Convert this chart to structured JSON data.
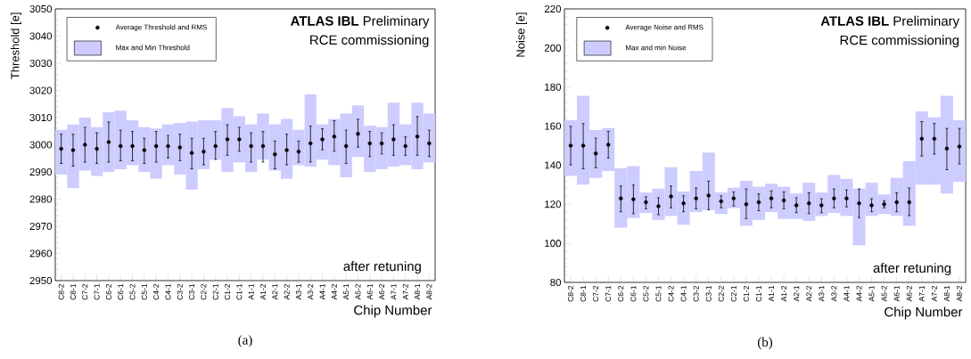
{
  "chart_data": [
    {
      "type": "bar",
      "ylabel": "Threshold [e]",
      "xlabel": "Chip Number",
      "legend": "top left",
      "marker": "circle",
      "categories": [
        "C8-2",
        "C8-1",
        "C7-2",
        "C7-1",
        "C6-2",
        "C6-1",
        "C5-2",
        "C5-1",
        "C4-2",
        "C4-1",
        "C3-2",
        "C3-1",
        "C2-2",
        "C2-1",
        "C1-2",
        "C1-1",
        "A1-1",
        "A1-2",
        "A2-1",
        "A2-2",
        "A3-1",
        "A3-2",
        "A4-1",
        "A4-2",
        "A5-1",
        "A5-2",
        "A6-1",
        "A6-2",
        "A7-1",
        "A7-2",
        "A8-1",
        "A8-2"
      ],
      "ylim": [
        2950,
        3050
      ],
      "yticks": [
        2950,
        2960,
        2970,
        2980,
        2990,
        3000,
        3010,
        3020,
        3030,
        3040,
        3050
      ],
      "series": [
        {
          "name": "Average Threshold and RMS",
          "type": "scatter",
          "color": "#000000",
          "values": [
            2998.5,
            2998,
            3000,
            2998.5,
            3001,
            2999.5,
            2999.5,
            2998,
            2999.5,
            2999.5,
            2999,
            2997,
            2997.5,
            2999.5,
            3002,
            3002,
            2999.5,
            2999.5,
            2996.5,
            2998,
            2997.5,
            3000.5,
            3002,
            3003,
            2999.5,
            3004,
            3000.5,
            3000.5,
            3002,
            2999.5,
            3003,
            3000.5
          ],
          "errors": [
            [
              2993,
              3004
            ],
            [
              2992,
              3004
            ],
            [
              2993.5,
              3006.5
            ],
            [
              2993,
              3004.5
            ],
            [
              2993.5,
              3008.5
            ],
            [
              2994,
              3005.5
            ],
            [
              2994,
              3005
            ],
            [
              2993,
              3002.5
            ],
            [
              2993.5,
              3005
            ],
            [
              2995,
              3003.5
            ],
            [
              2994,
              3004
            ],
            [
              2991,
              3002.5
            ],
            [
              2992.5,
              3002.5
            ],
            [
              2994.5,
              3005
            ],
            [
              2996,
              3007.5
            ],
            [
              2997.5,
              3006.5
            ],
            [
              2993.5,
              3004.5
            ],
            [
              2993.5,
              3005
            ],
            [
              2991,
              3001.5
            ],
            [
              2992.5,
              3004
            ],
            [
              2993.5,
              3001.5
            ],
            [
              2993.5,
              3007
            ],
            [
              2998,
              3006
            ],
            [
              2997.5,
              3009
            ],
            [
              2993,
              3005.5
            ],
            [
              2999,
              3009.5
            ],
            [
              2995.5,
              3005
            ],
            [
              2996.5,
              3004.5
            ],
            [
              2996,
              3007.5
            ],
            [
              2996,
              3003
            ],
            [
              2996,
              3010.5
            ],
            [
              2995.5,
              3005.5
            ]
          ]
        },
        {
          "name": "Max and Min Threshold",
          "color": "#ccccff",
          "base": [
            2989,
            2984,
            2990.5,
            2988.5,
            2990,
            2991,
            2992.5,
            2990,
            2987.5,
            2992.5,
            2989,
            2983.5,
            2991,
            2994.5,
            2990,
            2993.5,
            2990,
            2994.5,
            2990.5,
            2987.5,
            2992.5,
            2992,
            2994.5,
            2992.5,
            2988,
            2995.5,
            2990,
            2991,
            2992,
            2992.5,
            2991,
            2993.5
          ],
          "values": [
            16.5,
            23.5,
            19.5,
            18,
            22,
            21.5,
            16.5,
            16.5,
            18.5,
            15,
            19,
            25,
            18,
            14.5,
            23.5,
            17,
            17.5,
            17,
            17,
            22,
            13,
            26.5,
            13,
            17,
            23.5,
            19,
            17,
            15.5,
            23.5,
            15,
            24.5,
            18
          ]
        }
      ],
      "annotations": [
        "**ATLAS IBL** Preliminary",
        "RCE commissioning",
        "after retuning",
        "(a)"
      ]
    },
    {
      "type": "bar",
      "ylabel": "Noise [e]",
      "xlabel": "Chip Number",
      "legend": "top left",
      "marker": "circle",
      "categories": [
        "C8-2",
        "C8-1",
        "C7-2",
        "C7-1",
        "C6-2",
        "C6-1",
        "C5-2",
        "C5-1",
        "C4-2",
        "C4-1",
        "C3-2",
        "C3-1",
        "C2-2",
        "C2-1",
        "C1-2",
        "C1-1",
        "A1-1",
        "A1-2",
        "A2-1",
        "A2-2",
        "A3-1",
        "A3-2",
        "A4-1",
        "A4-2",
        "A5-1",
        "A5-2",
        "A6-1",
        "A6-2",
        "A7-1",
        "A7-2",
        "A8-1",
        "A8-2"
      ],
      "ylim": [
        80,
        220
      ],
      "yticks": [
        80,
        100,
        120,
        140,
        160,
        180,
        200,
        220
      ],
      "series": [
        {
          "name": "Average Noise and RMS",
          "type": "scatter",
          "color": "#000000",
          "values": [
            150,
            150,
            146,
            150.5,
            123,
            122.5,
            121,
            119,
            124,
            120.5,
            123,
            124.5,
            121.5,
            123,
            120,
            121,
            123,
            122,
            119.5,
            120.5,
            119.5,
            123,
            123,
            120.5,
            119.5,
            120,
            121,
            121,
            153.5,
            153.5,
            148.5,
            149.5
          ],
          "errors": [
            [
              140,
              160
            ],
            [
              138,
              161.5
            ],
            [
              138.5,
              154
            ],
            [
              143.5,
              157.5
            ],
            [
              116,
              129.5
            ],
            [
              115,
              130
            ],
            [
              117.5,
              124
            ],
            [
              114.5,
              123.5
            ],
            [
              118,
              129.5
            ],
            [
              116,
              124.5
            ],
            [
              117.5,
              128.5
            ],
            [
              117,
              132
            ],
            [
              118,
              124.5
            ],
            [
              119,
              126.5
            ],
            [
              112.5,
              128
            ],
            [
              116.5,
              125.5
            ],
            [
              118,
              127
            ],
            [
              117.5,
              126.5
            ],
            [
              115.5,
              123.5
            ],
            [
              115,
              126
            ],
            [
              115.5,
              123
            ],
            [
              118,
              128
            ],
            [
              118.5,
              127.5
            ],
            [
              113,
              128
            ],
            [
              116,
              123
            ],
            [
              118,
              122
            ],
            [
              116,
              126
            ],
            [
              114,
              128.5
            ],
            [
              144.5,
              162.5
            ],
            [
              145.5,
              161.5
            ],
            [
              137.5,
              159
            ],
            [
              140.5,
              159
            ]
          ]
        },
        {
          "name": "Max and min Noise",
          "color": "#ccccff",
          "base": [
            134.5,
            130,
            133.5,
            137,
            108,
            113,
            115.5,
            112,
            114,
            109.5,
            116,
            117,
            115,
            118,
            109,
            112,
            116,
            112.5,
            112.5,
            111.5,
            114,
            115.5,
            114,
            99,
            114,
            115,
            114,
            109,
            130,
            130,
            125.5,
            131.5
          ],
          "values": [
            28.5,
            45.5,
            24.5,
            22,
            30.5,
            26.5,
            10.5,
            16,
            25,
            17,
            21,
            29.5,
            11,
            10.5,
            23,
            17,
            14.5,
            16.5,
            13,
            19.5,
            12,
            19.5,
            19,
            29,
            17,
            10,
            19.5,
            33,
            37.5,
            34.5,
            50,
            31.5
          ]
        }
      ],
      "annotations": [
        "**ATLAS IBL** Preliminary",
        "RCE commissioning",
        "after retuning",
        "(b)"
      ]
    }
  ]
}
